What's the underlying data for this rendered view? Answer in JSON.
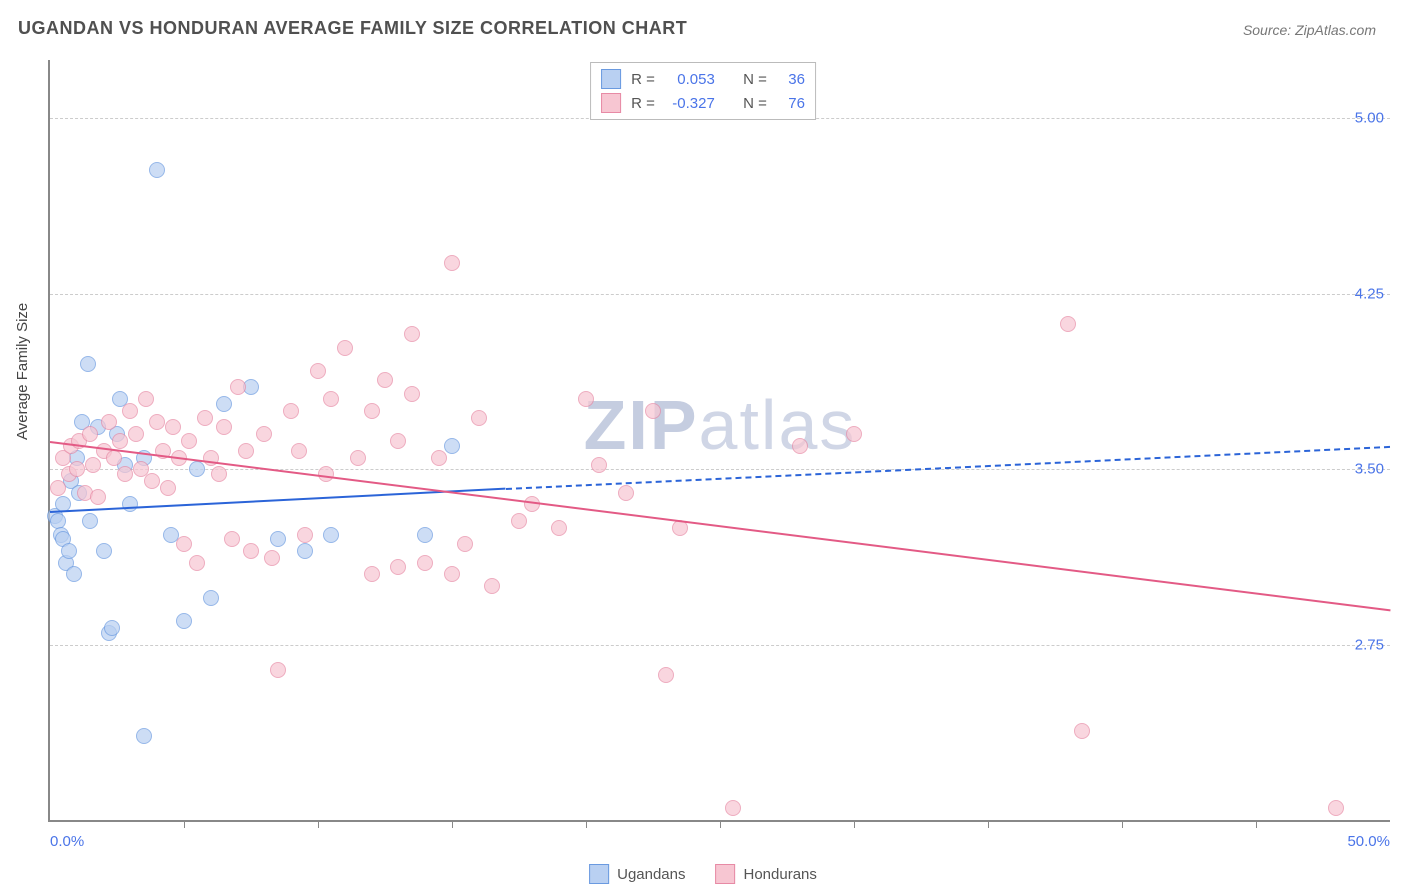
{
  "title": "UGANDAN VS HONDURAN AVERAGE FAMILY SIZE CORRELATION CHART",
  "source": "Source: ZipAtlas.com",
  "watermark_bold": "ZIP",
  "watermark_light": "atlas",
  "chart": {
    "type": "scatter",
    "xmin": 0.0,
    "xmax": 50.0,
    "ymin": 2.0,
    "ymax": 5.25,
    "x_label_min": "0.0%",
    "x_label_max": "50.0%",
    "y_title": "Average Family Size",
    "y_ticks": [
      2.75,
      3.5,
      4.25,
      5.0
    ],
    "y_tick_labels": [
      "2.75",
      "3.50",
      "4.25",
      "5.00"
    ],
    "x_ticks": [
      5,
      10,
      15,
      20,
      25,
      30,
      35,
      40,
      45
    ],
    "grid_color": "#cccccc",
    "axis_color": "#888888",
    "bg_color": "#ffffff",
    "label_color": "#4a74e8",
    "series": [
      {
        "name": "Ugandans",
        "color_fill": "#b9d0f2",
        "color_stroke": "#6a9ae0",
        "R": "0.053",
        "N": "36",
        "trend": {
          "x1": 0,
          "y1": 3.32,
          "x2": 17,
          "y2": 3.42,
          "solid": true,
          "x2b": 50,
          "y2b": 3.6,
          "color": "#2b64d8"
        },
        "points": [
          [
            0.2,
            3.3
          ],
          [
            0.3,
            3.28
          ],
          [
            0.4,
            3.22
          ],
          [
            0.5,
            3.35
          ],
          [
            0.5,
            3.2
          ],
          [
            0.6,
            3.1
          ],
          [
            0.7,
            3.15
          ],
          [
            0.8,
            3.45
          ],
          [
            0.9,
            3.05
          ],
          [
            1.0,
            3.55
          ],
          [
            1.1,
            3.4
          ],
          [
            1.2,
            3.7
          ],
          [
            1.4,
            3.95
          ],
          [
            1.5,
            3.28
          ],
          [
            1.8,
            3.68
          ],
          [
            2.0,
            3.15
          ],
          [
            2.2,
            2.8
          ],
          [
            2.3,
            2.82
          ],
          [
            2.5,
            3.65
          ],
          [
            2.6,
            3.8
          ],
          [
            2.8,
            3.52
          ],
          [
            3.0,
            3.35
          ],
          [
            3.5,
            3.55
          ],
          [
            3.5,
            2.36
          ],
          [
            4.0,
            4.78
          ],
          [
            4.5,
            3.22
          ],
          [
            5.0,
            2.85
          ],
          [
            5.5,
            3.5
          ],
          [
            6.0,
            2.95
          ],
          [
            6.5,
            3.78
          ],
          [
            7.5,
            3.85
          ],
          [
            8.5,
            3.2
          ],
          [
            9.5,
            3.15
          ],
          [
            10.5,
            3.22
          ],
          [
            14.0,
            3.22
          ],
          [
            15.0,
            3.6
          ]
        ]
      },
      {
        "name": "Hondurans",
        "color_fill": "#f7c6d2",
        "color_stroke": "#e78aa5",
        "R": "-0.327",
        "N": "76",
        "trend": {
          "x1": 0,
          "y1": 3.62,
          "x2": 50,
          "y2": 2.9,
          "solid": true,
          "color": "#e35a85"
        },
        "points": [
          [
            0.3,
            3.42
          ],
          [
            0.5,
            3.55
          ],
          [
            0.7,
            3.48
          ],
          [
            0.8,
            3.6
          ],
          [
            1.0,
            3.5
          ],
          [
            1.1,
            3.62
          ],
          [
            1.3,
            3.4
          ],
          [
            1.5,
            3.65
          ],
          [
            1.6,
            3.52
          ],
          [
            1.8,
            3.38
          ],
          [
            2.0,
            3.58
          ],
          [
            2.2,
            3.7
          ],
          [
            2.4,
            3.55
          ],
          [
            2.6,
            3.62
          ],
          [
            2.8,
            3.48
          ],
          [
            3.0,
            3.75
          ],
          [
            3.2,
            3.65
          ],
          [
            3.4,
            3.5
          ],
          [
            3.6,
            3.8
          ],
          [
            3.8,
            3.45
          ],
          [
            4.0,
            3.7
          ],
          [
            4.2,
            3.58
          ],
          [
            4.4,
            3.42
          ],
          [
            4.6,
            3.68
          ],
          [
            4.8,
            3.55
          ],
          [
            5.0,
            3.18
          ],
          [
            5.2,
            3.62
          ],
          [
            5.5,
            3.1
          ],
          [
            5.8,
            3.72
          ],
          [
            6.0,
            3.55
          ],
          [
            6.3,
            3.48
          ],
          [
            6.5,
            3.68
          ],
          [
            6.8,
            3.2
          ],
          [
            7.0,
            3.85
          ],
          [
            7.3,
            3.58
          ],
          [
            7.5,
            3.15
          ],
          [
            8.0,
            3.65
          ],
          [
            8.3,
            3.12
          ],
          [
            8.5,
            2.64
          ],
          [
            9.0,
            3.75
          ],
          [
            9.3,
            3.58
          ],
          [
            9.5,
            3.22
          ],
          [
            10.0,
            3.92
          ],
          [
            10.3,
            3.48
          ],
          [
            10.5,
            3.8
          ],
          [
            11.0,
            4.02
          ],
          [
            11.5,
            3.55
          ],
          [
            12.0,
            3.75
          ],
          [
            12.0,
            3.05
          ],
          [
            12.5,
            3.88
          ],
          [
            13.0,
            3.62
          ],
          [
            13.0,
            3.08
          ],
          [
            13.5,
            3.82
          ],
          [
            14.0,
            3.1
          ],
          [
            14.5,
            3.55
          ],
          [
            15.0,
            4.38
          ],
          [
            15.0,
            3.05
          ],
          [
            15.5,
            3.18
          ],
          [
            16.0,
            3.72
          ],
          [
            16.5,
            3.0
          ],
          [
            17.5,
            3.28
          ],
          [
            18.0,
            3.35
          ],
          [
            19.0,
            3.25
          ],
          [
            20.0,
            3.8
          ],
          [
            20.5,
            3.52
          ],
          [
            21.5,
            3.4
          ],
          [
            22.5,
            3.75
          ],
          [
            23.0,
            2.62
          ],
          [
            23.5,
            3.25
          ],
          [
            25.5,
            2.05
          ],
          [
            28.0,
            3.6
          ],
          [
            30.0,
            3.65
          ],
          [
            38.0,
            4.12
          ],
          [
            38.5,
            2.38
          ],
          [
            48.0,
            2.05
          ],
          [
            13.5,
            4.08
          ]
        ]
      }
    ]
  },
  "stats_labels": {
    "R": "R =",
    "N": "N ="
  },
  "legend_labels": [
    "Ugandans",
    "Hondurans"
  ]
}
